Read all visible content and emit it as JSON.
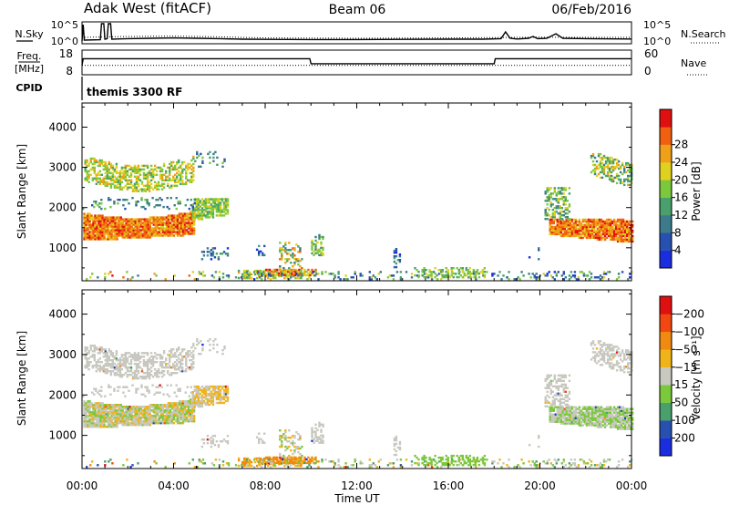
{
  "header": {
    "station": "Adak West (fitACF)",
    "beam": "Beam 06",
    "date": "06/Feb/2016"
  },
  "colors": {
    "power": [
      "#1a2ee0",
      "#2850b0",
      "#3c7a8c",
      "#4aa06c",
      "#7cc83c",
      "#e0d020",
      "#f0a018",
      "#f06010",
      "#e01010"
    ],
    "velocity": [
      "#e01010",
      "#f04810",
      "#f08a10",
      "#f0b418",
      "#c8c8c0",
      "#7cc83c",
      "#4aa06c",
      "#2850b0",
      "#1a2ee0"
    ]
  },
  "chart_data": [
    {
      "type": "line",
      "name": "noise-panel",
      "left_label": "N.Sky",
      "right_label": "N.Search",
      "left_ticks": [
        "10^5",
        "10^0"
      ],
      "right_ticks": [
        "10^5",
        "10^0"
      ],
      "x_range_hours": [
        0,
        24
      ],
      "series": [
        {
          "style": "solid",
          "points": [
            [
              0,
              0.05
            ],
            [
              0.05,
              0.95
            ],
            [
              0.1,
              0.1
            ],
            [
              0.8,
              0.12
            ],
            [
              0.85,
              1
            ],
            [
              0.95,
              1
            ],
            [
              1,
              0.15
            ],
            [
              1.1,
              0.18
            ],
            [
              1.15,
              1
            ],
            [
              1.25,
              1
            ],
            [
              1.3,
              0.15
            ],
            [
              2,
              0.18
            ],
            [
              3,
              0.2
            ],
            [
              4,
              0.22
            ],
            [
              5,
              0.2
            ],
            [
              6,
              0.18
            ],
            [
              7,
              0.15
            ],
            [
              8,
              0.14
            ],
            [
              10,
              0.13
            ],
            [
              12,
              0.13
            ],
            [
              14,
              0.14
            ],
            [
              16,
              0.15
            ],
            [
              17.5,
              0.15
            ],
            [
              18.3,
              0.18
            ],
            [
              18.5,
              0.55
            ],
            [
              18.7,
              0.2
            ],
            [
              19,
              0.16
            ],
            [
              19.5,
              0.2
            ],
            [
              19.7,
              0.3
            ],
            [
              19.9,
              0.18
            ],
            [
              20.3,
              0.2
            ],
            [
              20.7,
              0.45
            ],
            [
              21,
              0.2
            ],
            [
              22,
              0.18
            ],
            [
              24,
              0.16
            ]
          ]
        },
        {
          "style": "dotted",
          "points": [
            [
              0,
              0.25
            ],
            [
              2,
              0.3
            ],
            [
              4,
              0.32
            ],
            [
              6,
              0.28
            ],
            [
              8,
              0.22
            ],
            [
              12,
              0.2
            ],
            [
              16,
              0.22
            ],
            [
              18,
              0.24
            ],
            [
              20,
              0.26
            ],
            [
              22,
              0.25
            ],
            [
              24,
              0.25
            ]
          ]
        }
      ]
    },
    {
      "type": "line",
      "name": "frequency-panel",
      "left_label_top": "Freq.",
      "left_label_bottom": "[MHz]",
      "left_ticks": [
        "18",
        "8"
      ],
      "right_ticks": [
        "60",
        "0"
      ],
      "right_label": "Nave",
      "cpid_label": "CPID",
      "x_range_hours": [
        0,
        24
      ],
      "series": [
        {
          "style": "solid",
          "points": [
            [
              0,
              11.7
            ],
            [
              0.05,
              14.8
            ],
            [
              9.95,
              14.8
            ],
            [
              10,
              12.4
            ],
            [
              18,
              12.4
            ],
            [
              18.05,
              14.8
            ],
            [
              24,
              14.8
            ]
          ]
        },
        {
          "style": "dotted",
          "points": [
            [
              0,
              11.6
            ],
            [
              24,
              11.6
            ]
          ]
        }
      ]
    },
    {
      "type": "heatmap",
      "name": "power-panel",
      "mode_label": "themis 3300 RF",
      "ylabel": "Slant Range [km]",
      "yticks": [
        1000,
        2000,
        3000,
        4000
      ],
      "ylim": [
        180,
        4600
      ],
      "x_range_hours": [
        0,
        24
      ],
      "colorbar_label": "Power [dB]",
      "colorbar_ticks": [
        "4",
        "8",
        "12",
        "16",
        "20",
        "24",
        "28"
      ]
    },
    {
      "type": "heatmap",
      "name": "velocity-panel",
      "ylabel": "Slant Range [km]",
      "yticks": [
        1000,
        2000,
        3000,
        4000
      ],
      "ylim": [
        180,
        4600
      ],
      "x_range_hours": [
        0,
        24
      ],
      "colorbar_label": "Velocity [m s⁻¹]",
      "colorbar_ticks": [
        "-200",
        "-100",
        "-50",
        "-15",
        "15",
        "50",
        "100",
        "200"
      ],
      "xlabel": "Time UT",
      "xticks": [
        "00:00",
        "04:00",
        "08:00",
        "12:00",
        "16:00",
        "20:00",
        "00:00"
      ]
    }
  ]
}
